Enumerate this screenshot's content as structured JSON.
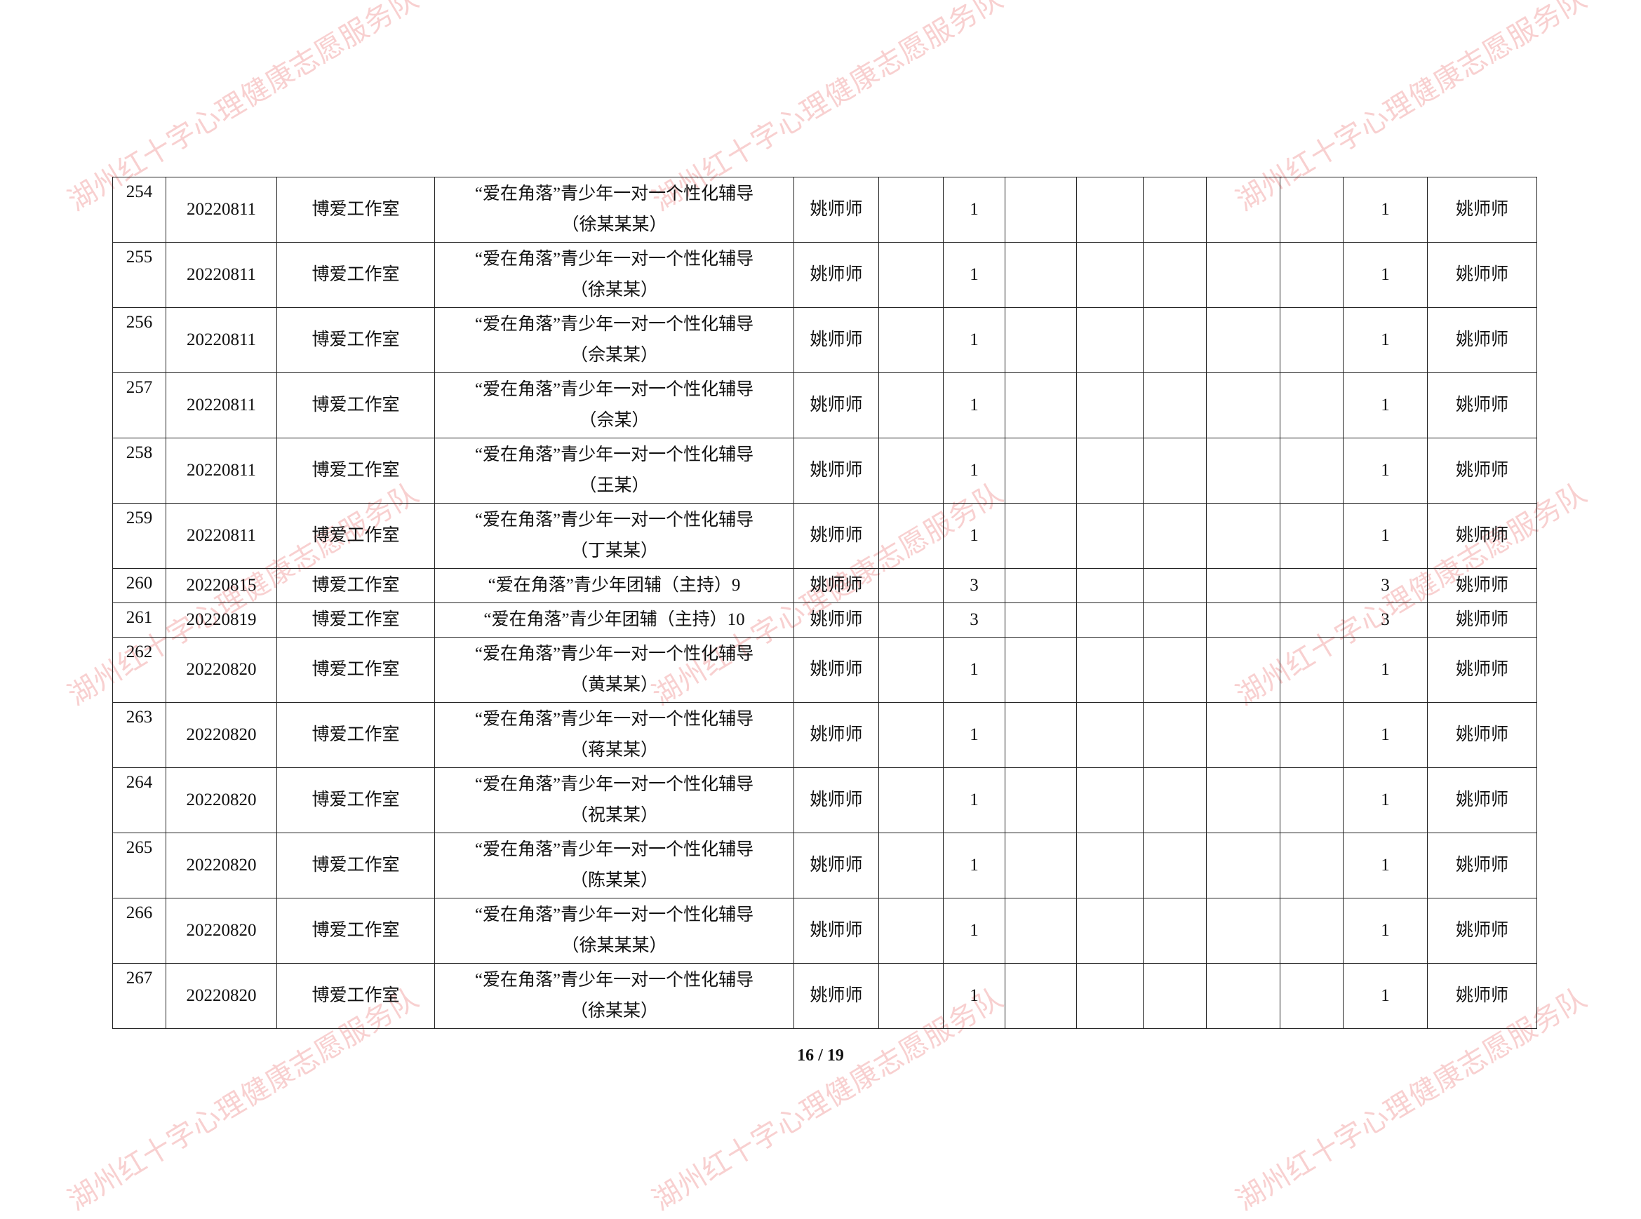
{
  "watermark": {
    "text": "湖州红十字心理健康志愿服务队",
    "color": "#eb7878"
  },
  "table": {
    "rows": [
      {
        "no": "254",
        "date": "20220811",
        "dept": "博爱工作室",
        "activity": [
          "“爱在角落”青少年一对一个性化辅导",
          "（徐某某某）"
        ],
        "teacher": "姚师师",
        "count": "1",
        "total": "1",
        "signer": "姚师师"
      },
      {
        "no": "255",
        "date": "20220811",
        "dept": "博爱工作室",
        "activity": [
          "“爱在角落”青少年一对一个性化辅导",
          "（徐某某）"
        ],
        "teacher": "姚师师",
        "count": "1",
        "total": "1",
        "signer": "姚师师"
      },
      {
        "no": "256",
        "date": "20220811",
        "dept": "博爱工作室",
        "activity": [
          "“爱在角落”青少年一对一个性化辅导",
          "（佘某某）"
        ],
        "teacher": "姚师师",
        "count": "1",
        "total": "1",
        "signer": "姚师师"
      },
      {
        "no": "257",
        "date": "20220811",
        "dept": "博爱工作室",
        "activity": [
          "“爱在角落”青少年一对一个性化辅导",
          "（佘某）"
        ],
        "teacher": "姚师师",
        "count": "1",
        "total": "1",
        "signer": "姚师师"
      },
      {
        "no": "258",
        "date": "20220811",
        "dept": "博爱工作室",
        "activity": [
          "“爱在角落”青少年一对一个性化辅导",
          "（王某）"
        ],
        "teacher": "姚师师",
        "count": "1",
        "total": "1",
        "signer": "姚师师"
      },
      {
        "no": "259",
        "date": "20220811",
        "dept": "博爱工作室",
        "activity": [
          "“爱在角落”青少年一对一个性化辅导",
          "（丁某某）"
        ],
        "teacher": "姚师师",
        "count": "1",
        "total": "1",
        "signer": "姚师师"
      },
      {
        "no": "260",
        "date": "20220815",
        "dept": "博爱工作室",
        "activity": [
          "“爱在角落”青少年团辅（主持）9"
        ],
        "teacher": "姚师师",
        "count": "3",
        "total": "3",
        "signer": "姚师师"
      },
      {
        "no": "261",
        "date": "20220819",
        "dept": "博爱工作室",
        "activity": [
          "“爱在角落”青少年团辅（主持）10"
        ],
        "teacher": "姚师师",
        "count": "3",
        "total": "3",
        "signer": "姚师师"
      },
      {
        "no": "262",
        "date": "20220820",
        "dept": "博爱工作室",
        "activity": [
          "“爱在角落”青少年一对一个性化辅导",
          "（黄某某）"
        ],
        "teacher": "姚师师",
        "count": "1",
        "total": "1",
        "signer": "姚师师"
      },
      {
        "no": "263",
        "date": "20220820",
        "dept": "博爱工作室",
        "activity": [
          "“爱在角落”青少年一对一个性化辅导",
          "（蒋某某）"
        ],
        "teacher": "姚师师",
        "count": "1",
        "total": "1",
        "signer": "姚师师"
      },
      {
        "no": "264",
        "date": "20220820",
        "dept": "博爱工作室",
        "activity": [
          "“爱在角落”青少年一对一个性化辅导",
          "（祝某某）"
        ],
        "teacher": "姚师师",
        "count": "1",
        "total": "1",
        "signer": "姚师师"
      },
      {
        "no": "265",
        "date": "20220820",
        "dept": "博爱工作室",
        "activity": [
          "“爱在角落”青少年一对一个性化辅导",
          "（陈某某）"
        ],
        "teacher": "姚师师",
        "count": "1",
        "total": "1",
        "signer": "姚师师"
      },
      {
        "no": "266",
        "date": "20220820",
        "dept": "博爱工作室",
        "activity": [
          "“爱在角落”青少年一对一个性化辅导",
          "（徐某某某）"
        ],
        "teacher": "姚师师",
        "count": "1",
        "total": "1",
        "signer": "姚师师"
      },
      {
        "no": "267",
        "date": "20220820",
        "dept": "博爱工作室",
        "activity": [
          "“爱在角落”青少年一对一个性化辅导",
          "（徐某某）"
        ],
        "teacher": "姚师师",
        "count": "1",
        "total": "1",
        "signer": "姚师师"
      }
    ]
  },
  "footer": {
    "page": "16 / 19"
  }
}
